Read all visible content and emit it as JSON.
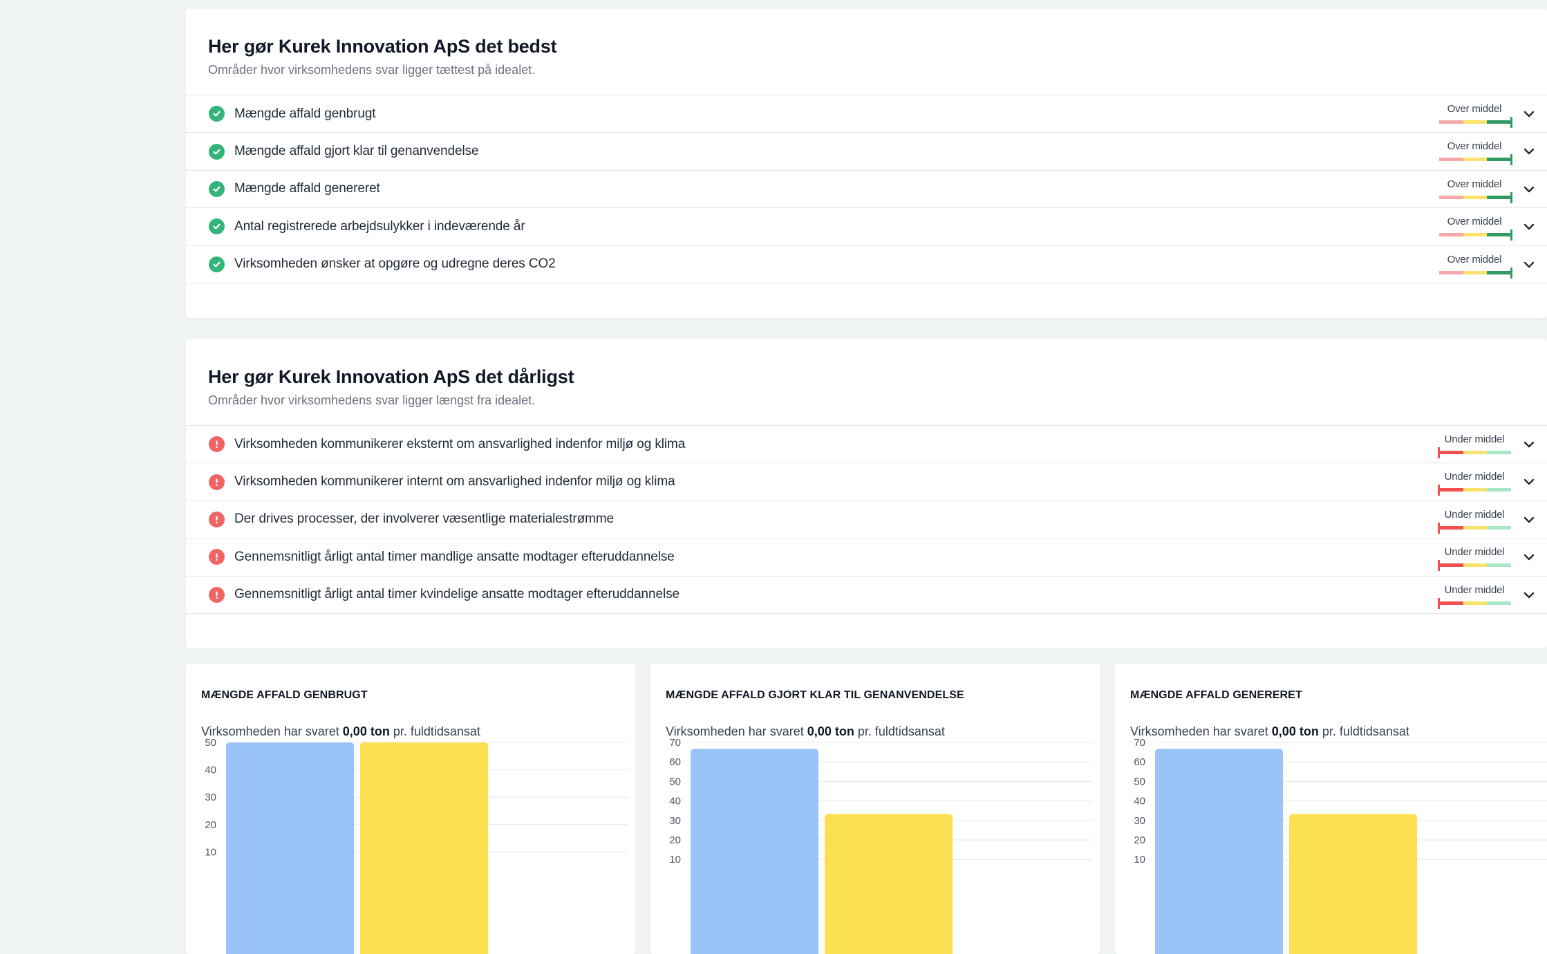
{
  "best": {
    "title": "Her gør Kurek Innovation ApS det bedst",
    "subtitle": "Områder hvor virksomhedens svar ligger tættest på idealet.",
    "items": [
      {
        "label": "Mængde affald genbrugt",
        "rating": "Over middel"
      },
      {
        "label": "Mængde affald gjort klar til genanvendelse",
        "rating": "Over middel"
      },
      {
        "label": "Mængde affald genereret",
        "rating": "Over middel"
      },
      {
        "label": "Antal registrerede arbejdsulykker i indeværende år",
        "rating": "Over middel"
      },
      {
        "label": "Virksomheden ønsker at opgøre og udregne deres CO2",
        "rating": "Over middel"
      }
    ]
  },
  "worst": {
    "title": "Her gør Kurek Innovation ApS det dårligst",
    "subtitle": "Områder hvor virksomhedens svar ligger længst fra idealet.",
    "items": [
      {
        "label": "Virksomheden kommunikerer eksternt om ansvarlighed indenfor miljø og klima",
        "rating": "Under middel"
      },
      {
        "label": "Virksomheden kommunikerer internt om ansvarlighed indenfor miljø og klima",
        "rating": "Under middel"
      },
      {
        "label": "Der drives processer, der involverer væsentlige materialestrømme",
        "rating": "Under middel"
      },
      {
        "label": "Gennemsnitligt årligt antal timer mandlige ansatte modtager efteruddannelse",
        "rating": "Under middel"
      },
      {
        "label": "Gennemsnitligt årligt antal timer kvindelige ansatte modtager efteruddannelse",
        "rating": "Under middel"
      }
    ]
  },
  "colors": {
    "good": "#34b37a",
    "bad": "#ef6464",
    "meter_red": "#f4a8a8",
    "meter_red_strong": "#ef5050",
    "meter_yellow": "#fbe26b",
    "meter_green": "#a7e7c6",
    "meter_green_strong": "#2f9a63",
    "bar_blue": "#9ac3f8",
    "bar_yellow": "#fbe04f"
  },
  "icons": {
    "good": "check-circle-icon",
    "bad": "exclamation-circle-icon",
    "expand": "chevron-down-icon"
  },
  "answer_parts": {
    "prefix": "Virksomheden har svaret",
    "value": "0,00 ton",
    "suffix": "pr. fuldtidsansat"
  },
  "chart_data": [
    {
      "type": "bar",
      "title": "MÆNGDE AFFALD GENBRUGT",
      "ylim": [
        0,
        50
      ],
      "yticks": [
        10,
        20,
        30,
        40,
        50
      ],
      "values": [
        50,
        50
      ]
    },
    {
      "type": "bar",
      "title": "MÆNGDE AFFALD GJORT KLAR TIL GENANVENDELSE",
      "ylim": [
        0,
        70
      ],
      "yticks": [
        10,
        20,
        30,
        40,
        50,
        60,
        70
      ],
      "values": [
        66.7,
        33.3
      ]
    },
    {
      "type": "bar",
      "title": "MÆNGDE AFFALD GENERERET",
      "ylim": [
        0,
        70
      ],
      "yticks": [
        10,
        20,
        30,
        40,
        50,
        60,
        70
      ],
      "values": [
        66.7,
        33.3
      ]
    }
  ]
}
